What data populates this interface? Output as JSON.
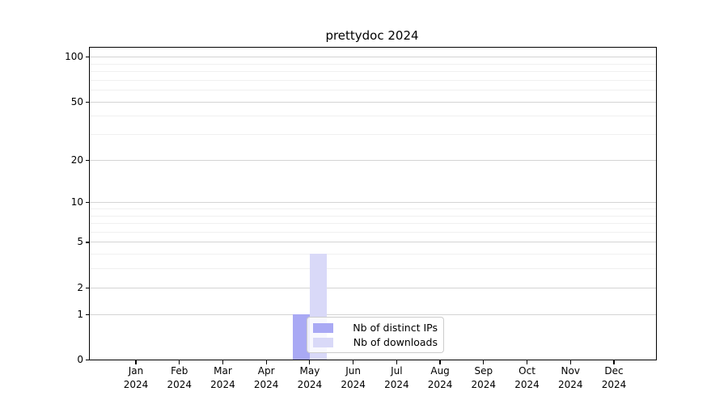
{
  "chart_data": {
    "type": "bar",
    "title": "prettydoc 2024",
    "categories": [
      "Jan",
      "Feb",
      "Mar",
      "Apr",
      "May",
      "Jun",
      "Jul",
      "Aug",
      "Sep",
      "Oct",
      "Nov",
      "Dec"
    ],
    "category_year": "2024",
    "series": [
      {
        "name": "Nb of distinct IPs",
        "color": "#a9a9f4",
        "values": [
          0,
          0,
          0,
          0,
          1,
          0,
          0,
          0,
          0,
          0,
          0,
          0
        ]
      },
      {
        "name": "Nb of downloads",
        "color": "#d9d9f8",
        "values": [
          0,
          0,
          0,
          0,
          4,
          0,
          0,
          0,
          0,
          0,
          0,
          0
        ]
      }
    ],
    "xlabel": "",
    "ylabel": "",
    "yscale": "log1p",
    "ylim": [
      0,
      115
    ],
    "y_major_ticks": [
      0,
      1,
      2,
      5,
      10,
      20,
      50,
      100
    ],
    "y_minor_gridlines": [
      3,
      4,
      6,
      7,
      8,
      9,
      30,
      40,
      60,
      70,
      80,
      90
    ],
    "grid": true,
    "legend_position": "lower center inside"
  },
  "colors": {
    "axis": "#000000",
    "grid_major": "#d4d4d4",
    "grid_minor": "#f0f0f0",
    "legend_border": "#cccccc",
    "background": "#ffffff"
  }
}
